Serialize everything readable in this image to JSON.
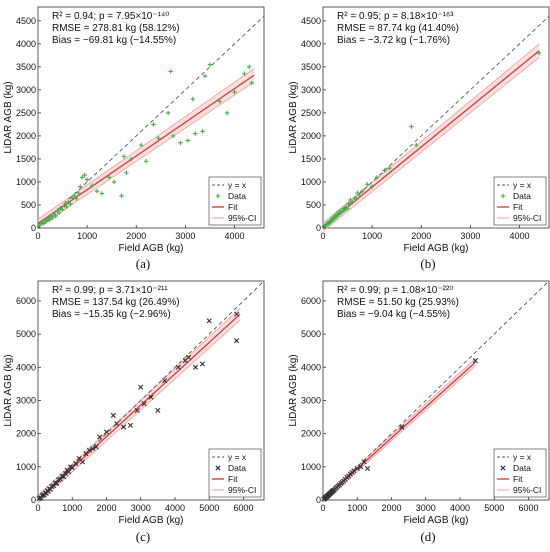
{
  "chart_data": [
    {
      "type": "scatter",
      "panel_label": "(a)",
      "stats": [
        "R² = 0.94; p = 7.95×10⁻¹⁴⁰",
        "RMSE = 278.81 kg (58.12%)",
        "Bias = −69.81 kg (−14.55%)"
      ],
      "xlabel": "Field AGB (kg)",
      "ylabel": "LiDAR AGB (kg)",
      "xlim": [
        0,
        4600
      ],
      "ylim": [
        0,
        4800
      ],
      "xticks": [
        0,
        1000,
        2000,
        3000,
        4000
      ],
      "yticks": [
        0,
        500,
        1000,
        1500,
        2000,
        2500,
        3000,
        3500,
        4000,
        4500
      ],
      "legend": [
        "y = x",
        "Data",
        "Fit",
        "95%-CI"
      ],
      "legend_position": "bottom-right",
      "grid": false,
      "marker": "plus",
      "point_color": "#3cb14a",
      "fit": [
        [
          0,
          100
        ],
        [
          4400,
          3320
        ]
      ],
      "ci_half_width": 90,
      "points": [
        [
          30,
          60
        ],
        [
          60,
          90
        ],
        [
          90,
          120
        ],
        [
          120,
          100
        ],
        [
          150,
          170
        ],
        [
          180,
          150
        ],
        [
          210,
          210
        ],
        [
          240,
          180
        ],
        [
          270,
          270
        ],
        [
          300,
          220
        ],
        [
          330,
          310
        ],
        [
          360,
          260
        ],
        [
          400,
          380
        ],
        [
          430,
          330
        ],
        [
          460,
          420
        ],
        [
          500,
          400
        ],
        [
          540,
          490
        ],
        [
          580,
          460
        ],
        [
          620,
          560
        ],
        [
          660,
          520
        ],
        [
          700,
          650
        ],
        [
          740,
          700
        ],
        [
          780,
          640
        ],
        [
          820,
          760
        ],
        [
          860,
          900
        ],
        [
          900,
          1100
        ],
        [
          950,
          1150
        ],
        [
          1000,
          1050
        ],
        [
          1100,
          920
        ],
        [
          1200,
          800
        ],
        [
          1300,
          750
        ],
        [
          1450,
          1100
        ],
        [
          1550,
          1000
        ],
        [
          1700,
          700
        ],
        [
          1750,
          1550
        ],
        [
          1800,
          1200
        ],
        [
          1900,
          1500
        ],
        [
          2100,
          1800
        ],
        [
          2200,
          1450
        ],
        [
          2350,
          2250
        ],
        [
          2450,
          1950
        ],
        [
          2650,
          2500
        ],
        [
          2700,
          3400
        ],
        [
          2750,
          2000
        ],
        [
          2900,
          1850
        ],
        [
          3050,
          1900
        ],
        [
          3150,
          2800
        ],
        [
          3200,
          2050
        ],
        [
          3350,
          2100
        ],
        [
          3400,
          3300
        ],
        [
          3500,
          3550
        ],
        [
          3700,
          2750
        ],
        [
          3850,
          2500
        ],
        [
          4000,
          2950
        ],
        [
          4200,
          3350
        ],
        [
          4300,
          3500
        ],
        [
          4350,
          3150
        ]
      ]
    },
    {
      "type": "scatter",
      "panel_label": "(b)",
      "stats": [
        "R² = 0.95; p = 8.18×10⁻¹⁶³",
        "RMSE = 87.74 kg (41.40%)",
        "Bias = −3.72 kg (−1.76%)"
      ],
      "xlabel": "Field AGB (kg)",
      "ylabel": "LiDAR AGB (kg)",
      "xlim": [
        0,
        4600
      ],
      "ylim": [
        0,
        4800
      ],
      "xticks": [
        0,
        1000,
        2000,
        3000,
        4000
      ],
      "yticks": [
        0,
        500,
        1000,
        1500,
        2000,
        2500,
        3000,
        3500,
        4000,
        4500
      ],
      "legend": [
        "y = x",
        "Data",
        "Fit",
        "95%-CI"
      ],
      "legend_position": "bottom-right",
      "grid": false,
      "marker": "plus",
      "point_color": "#3cb14a",
      "fit": [
        [
          0,
          20
        ],
        [
          4400,
          3850
        ]
      ],
      "ci_half_width": 90,
      "points": [
        [
          20,
          30
        ],
        [
          40,
          50
        ],
        [
          60,
          45
        ],
        [
          80,
          90
        ],
        [
          100,
          110
        ],
        [
          120,
          95
        ],
        [
          140,
          150
        ],
        [
          160,
          130
        ],
        [
          180,
          200
        ],
        [
          200,
          170
        ],
        [
          220,
          240
        ],
        [
          240,
          210
        ],
        [
          260,
          280
        ],
        [
          280,
          250
        ],
        [
          300,
          330
        ],
        [
          320,
          290
        ],
        [
          350,
          370
        ],
        [
          380,
          340
        ],
        [
          410,
          420
        ],
        [
          440,
          390
        ],
        [
          470,
          460
        ],
        [
          500,
          430
        ],
        [
          520,
          520
        ],
        [
          560,
          610
        ],
        [
          600,
          560
        ],
        [
          650,
          650
        ],
        [
          700,
          760
        ],
        [
          750,
          700
        ],
        [
          800,
          800
        ],
        [
          900,
          950
        ],
        [
          1000,
          900
        ],
        [
          1100,
          1100
        ],
        [
          1250,
          1250
        ],
        [
          1350,
          1300
        ],
        [
          1800,
          2200
        ],
        [
          1900,
          1800
        ],
        [
          4400,
          3800
        ]
      ]
    },
    {
      "type": "scatter",
      "panel_label": "(c)",
      "stats": [
        "R² = 0.99; p = 3.71×10⁻²¹¹",
        "RMSE = 137.54 kg (26.49%)",
        "Bias = −15.35 kg (−2.96%)"
      ],
      "xlabel": "Field AGB (kg)",
      "ylabel": "LiDAR AGB (kg)",
      "xlim": [
        0,
        6600
      ],
      "ylim": [
        0,
        6600
      ],
      "xticks": [
        0,
        1000,
        2000,
        3000,
        4000,
        5000,
        6000
      ],
      "yticks": [
        0,
        1000,
        2000,
        3000,
        4000,
        5000,
        6000
      ],
      "legend": [
        "y = x",
        "Data",
        "Fit",
        "95%-CI"
      ],
      "legend_position": "bottom-right",
      "grid": false,
      "marker": "cross",
      "point_color": "#333333",
      "fit": [
        [
          0,
          20
        ],
        [
          5900,
          5600
        ]
      ],
      "ci_half_width": 110,
      "points": [
        [
          30,
          40
        ],
        [
          60,
          70
        ],
        [
          90,
          60
        ],
        [
          120,
          130
        ],
        [
          150,
          160
        ],
        [
          180,
          150
        ],
        [
          210,
          220
        ],
        [
          240,
          200
        ],
        [
          270,
          280
        ],
        [
          300,
          260
        ],
        [
          330,
          340
        ],
        [
          360,
          320
        ],
        [
          400,
          410
        ],
        [
          450,
          430
        ],
        [
          500,
          520
        ],
        [
          550,
          500
        ],
        [
          600,
          610
        ],
        [
          650,
          630
        ],
        [
          700,
          720
        ],
        [
          750,
          700
        ],
        [
          800,
          800
        ],
        [
          850,
          900
        ],
        [
          900,
          850
        ],
        [
          950,
          1000
        ],
        [
          1000,
          980
        ],
        [
          1100,
          1100
        ],
        [
          1200,
          1250
        ],
        [
          1300,
          1150
        ],
        [
          1400,
          1400
        ],
        [
          1500,
          1500
        ],
        [
          1600,
          1550
        ],
        [
          1700,
          1600
        ],
        [
          1800,
          1900
        ],
        [
          2000,
          2050
        ],
        [
          2200,
          2550
        ],
        [
          2300,
          2300
        ],
        [
          2500,
          2200
        ],
        [
          2700,
          2250
        ],
        [
          2900,
          2700
        ],
        [
          3000,
          3400
        ],
        [
          3100,
          2900
        ],
        [
          3300,
          3100
        ],
        [
          3500,
          2700
        ],
        [
          3700,
          3600
        ],
        [
          4100,
          4000
        ],
        [
          4300,
          4200
        ],
        [
          4400,
          4300
        ],
        [
          4600,
          4000
        ],
        [
          4800,
          4100
        ],
        [
          5000,
          5400
        ],
        [
          5800,
          5600
        ],
        [
          5800,
          4800
        ]
      ]
    },
    {
      "type": "scatter",
      "panel_label": "(d)",
      "stats": [
        "R² = 0.99; p = 1.08×10⁻²²⁰",
        "RMSE = 51.50 kg (25.93%)",
        "Bias = −9.04 kg (−4.55%)"
      ],
      "xlabel": "Field AGB (kg)",
      "ylabel": "LiDAR AGB (kg)",
      "xlim": [
        0,
        6600
      ],
      "ylim": [
        0,
        6600
      ],
      "xticks": [
        0,
        1000,
        2000,
        3000,
        4000,
        5000,
        6000
      ],
      "yticks": [
        0,
        1000,
        2000,
        3000,
        4000,
        5000,
        6000
      ],
      "legend": [
        "y = x",
        "Data",
        "Fit",
        "95%-CI"
      ],
      "legend_position": "bottom-right",
      "grid": false,
      "marker": "cross",
      "point_color": "#333333",
      "fit": [
        [
          0,
          10
        ],
        [
          4450,
          4150
        ]
      ],
      "ci_half_width": 70,
      "points": [
        [
          20,
          25
        ],
        [
          40,
          35
        ],
        [
          60,
          55
        ],
        [
          80,
          75
        ],
        [
          100,
          95
        ],
        [
          120,
          110
        ],
        [
          140,
          130
        ],
        [
          160,
          150
        ],
        [
          180,
          170
        ],
        [
          200,
          190
        ],
        [
          220,
          205
        ],
        [
          240,
          230
        ],
        [
          260,
          245
        ],
        [
          280,
          270
        ],
        [
          300,
          285
        ],
        [
          330,
          300
        ],
        [
          360,
          340
        ],
        [
          400,
          380
        ],
        [
          440,
          420
        ],
        [
          480,
          450
        ],
        [
          520,
          500
        ],
        [
          560,
          530
        ],
        [
          600,
          570
        ],
        [
          650,
          620
        ],
        [
          700,
          680
        ],
        [
          750,
          720
        ],
        [
          800,
          780
        ],
        [
          850,
          830
        ],
        [
          900,
          880
        ],
        [
          1000,
          950
        ],
        [
          1100,
          1000
        ],
        [
          1200,
          1150
        ],
        [
          1300,
          950
        ],
        [
          2300,
          2200
        ],
        [
          4450,
          4200
        ]
      ]
    }
  ]
}
